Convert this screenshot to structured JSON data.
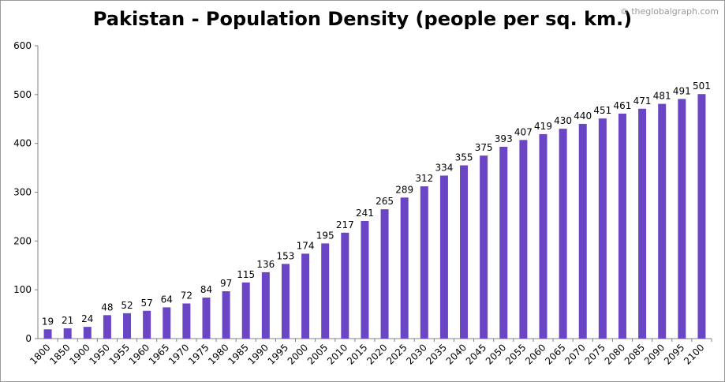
{
  "chart_data": {
    "type": "bar",
    "title": "Pakistan - Population Density (people per sq. km.)",
    "watermark": "© theglobalgraph.com",
    "xlabel": "",
    "ylabel": "",
    "ylim": [
      0,
      600
    ],
    "yticks": [
      0,
      100,
      200,
      300,
      400,
      500,
      600
    ],
    "grid": false,
    "legend": "none",
    "bar_color": "#6a46c6",
    "categories": [
      "1800",
      "1850",
      "1900",
      "1950",
      "1955",
      "1960",
      "1965",
      "1970",
      "1975",
      "1980",
      "1985",
      "1990",
      "1995",
      "2000",
      "2005",
      "2010",
      "2015",
      "2020",
      "2025",
      "2030",
      "2035",
      "2040",
      "2045",
      "2050",
      "2055",
      "2060",
      "2065",
      "2070",
      "2075",
      "2080",
      "2085",
      "2090",
      "2095",
      "2100"
    ],
    "values": [
      19,
      21,
      24,
      48,
      52,
      57,
      64,
      72,
      84,
      97,
      115,
      136,
      153,
      174,
      195,
      217,
      241,
      265,
      289,
      312,
      334,
      355,
      375,
      393,
      407,
      419,
      430,
      440,
      451,
      461,
      471,
      481,
      491,
      501
    ]
  }
}
